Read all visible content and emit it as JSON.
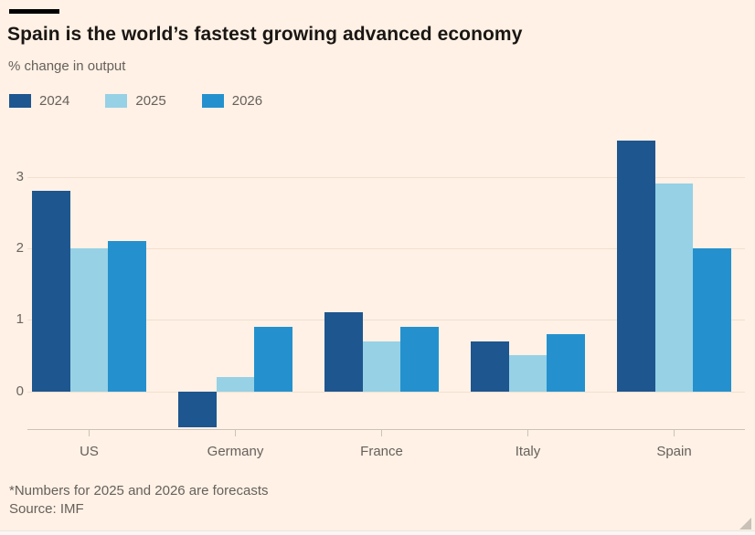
{
  "header": {
    "title": "Spain is the world’s fastest growing advanced economy",
    "subtitle": "% change in output"
  },
  "chart_data": {
    "type": "bar",
    "categories": [
      "US",
      "Germany",
      "France",
      "Italy",
      "Spain"
    ],
    "series": [
      {
        "name": "2024",
        "color": "#1e568f",
        "values": [
          2.8,
          -0.5,
          1.1,
          0.7,
          3.5
        ]
      },
      {
        "name": "2025",
        "color": "#96d1e6",
        "values": [
          2.0,
          0.2,
          0.7,
          0.5,
          2.9
        ]
      },
      {
        "name": "2026",
        "color": "#2491ce",
        "values": [
          2.1,
          0.9,
          0.9,
          0.8,
          2.0
        ]
      }
    ],
    "title": "Spain is the world’s fastest growing advanced economy",
    "ylabel": "% change in output",
    "xlabel": "",
    "yticks": [
      0,
      1,
      2,
      3
    ],
    "ylim": [
      -0.53,
      3.57
    ],
    "grid": "horizontal",
    "legend_position": "top-left"
  },
  "footer": {
    "note": "*Numbers for 2025 and 2026 are forecasts",
    "source": "Source: IMF"
  },
  "colors": {
    "background": "#fff1e5",
    "title_text": "#1a1613",
    "muted_text": "#66605c",
    "gridline": "#f2e0cf",
    "axis_line": "#ccc2b8",
    "accent_bar": "#000000"
  }
}
